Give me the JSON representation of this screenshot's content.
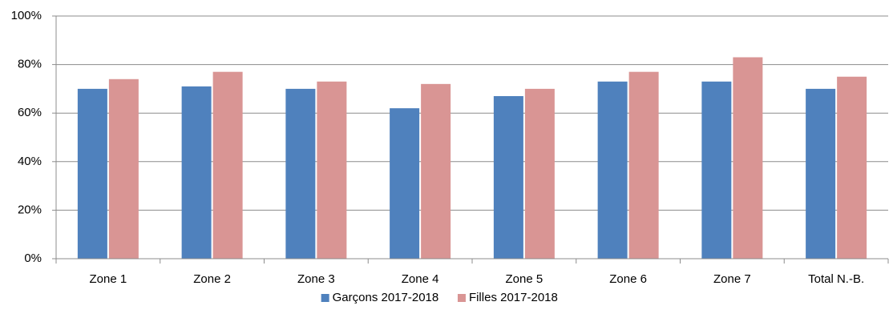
{
  "chart_data": {
    "type": "bar",
    "categories": [
      "Zone 1",
      "Zone 2",
      "Zone 3",
      "Zone 4",
      "Zone 5",
      "Zone 6",
      "Zone 7",
      "Total N.-B."
    ],
    "series": [
      {
        "name": "Garçons 2017-2018",
        "color": "#4f81bd",
        "values": [
          70,
          71,
          70,
          62,
          67,
          73,
          73,
          70
        ]
      },
      {
        "name": "Filles 2017-2018",
        "color": "#d99594",
        "values": [
          74,
          77,
          73,
          72,
          70,
          77,
          83,
          75
        ]
      }
    ],
    "ylim": [
      0,
      100
    ],
    "yticks": [
      {
        "value": 0,
        "label": "0%"
      },
      {
        "value": 20,
        "label": "20%"
      },
      {
        "value": 40,
        "label": "40%"
      },
      {
        "value": 60,
        "label": "60%"
      },
      {
        "value": 80,
        "label": "80%"
      },
      {
        "value": 100,
        "label": "100%"
      }
    ],
    "grid": true,
    "legend": "bottom"
  }
}
